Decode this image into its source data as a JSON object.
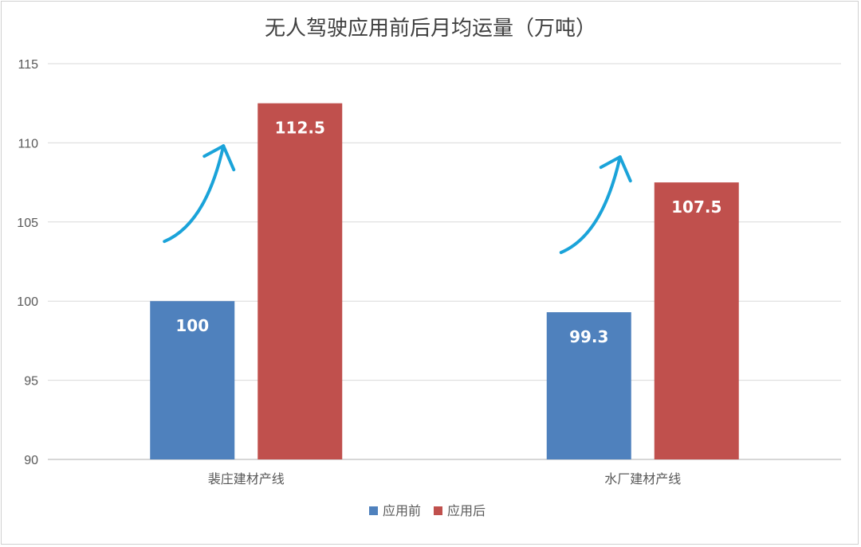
{
  "chart_data": {
    "type": "bar",
    "title": "无人驾驶应用前后月均运量（万吨）",
    "categories": [
      "裴庄建材产线",
      "水厂建材产线"
    ],
    "series": [
      {
        "name": "应用前",
        "values": [
          100,
          99.3
        ],
        "color": "#4f81bd"
      },
      {
        "name": "应用后",
        "values": [
          112.5,
          107.5
        ],
        "color": "#c0504d"
      }
    ],
    "data_labels": [
      [
        "100",
        "99.3"
      ],
      [
        "112.5",
        "107.5"
      ]
    ],
    "yticks": [
      "90",
      "95",
      "100",
      "105",
      "110",
      "115"
    ],
    "ylim": [
      90,
      115
    ],
    "grid": true,
    "legend_position": "bottom",
    "arrow_color": "#1aa3d9",
    "arrow_icon": "upward-curved-arrow"
  }
}
